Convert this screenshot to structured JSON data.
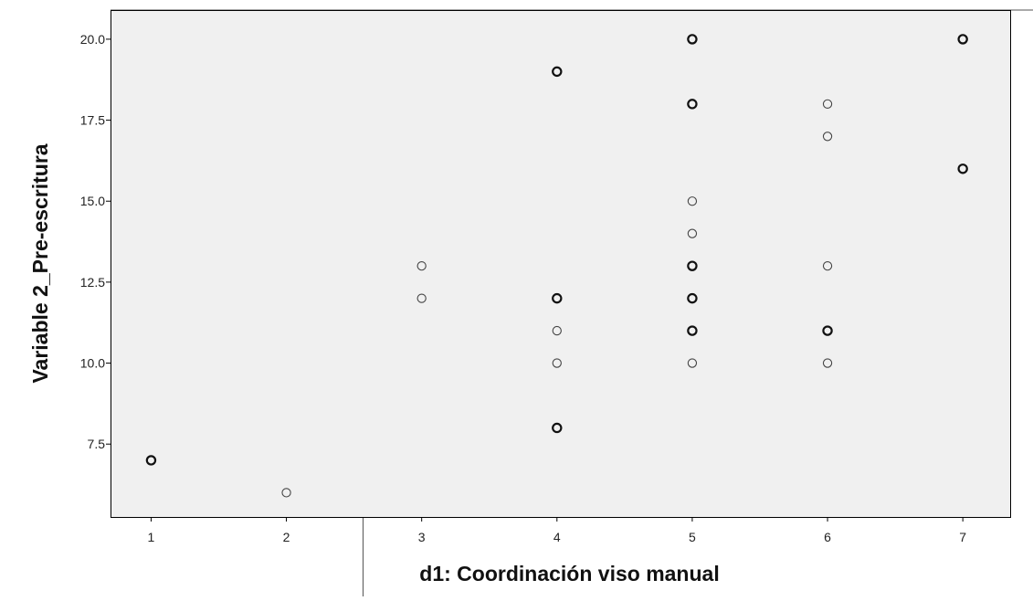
{
  "chart_data": {
    "type": "scatter",
    "xlabel": "d1: Coordinación viso manual",
    "ylabel": "Variable 2_Pre-escritura",
    "xlim": [
      0.7,
      7.35
    ],
    "ylim": [
      5.25,
      20.9
    ],
    "x_ticks": [
      1,
      2,
      3,
      4,
      5,
      6,
      7
    ],
    "y_ticks": [
      7.5,
      10.0,
      12.5,
      15.0,
      17.5,
      20.0
    ],
    "x_tick_labels": [
      "1",
      "2",
      "3",
      "4",
      "5",
      "6",
      "7"
    ],
    "y_tick_labels": [
      "7.5",
      "10.0",
      "12.5",
      "15.0",
      "17.5",
      "20.0"
    ],
    "grid": false,
    "legend": "none",
    "colors": {
      "plot_background": "#f0f0f0",
      "marker_stroke": "#333333",
      "axis": "#000000"
    },
    "points": [
      {
        "x": 1,
        "y": 7,
        "bold": true
      },
      {
        "x": 2,
        "y": 6,
        "bold": false
      },
      {
        "x": 3,
        "y": 13,
        "bold": false
      },
      {
        "x": 3,
        "y": 12,
        "bold": false
      },
      {
        "x": 4,
        "y": 19,
        "bold": true
      },
      {
        "x": 4,
        "y": 12,
        "bold": true
      },
      {
        "x": 4,
        "y": 11,
        "bold": false
      },
      {
        "x": 4,
        "y": 10,
        "bold": false
      },
      {
        "x": 4,
        "y": 8,
        "bold": true
      },
      {
        "x": 5,
        "y": 20,
        "bold": true
      },
      {
        "x": 5,
        "y": 18,
        "bold": true
      },
      {
        "x": 5,
        "y": 15,
        "bold": false
      },
      {
        "x": 5,
        "y": 14,
        "bold": false
      },
      {
        "x": 5,
        "y": 13,
        "bold": true
      },
      {
        "x": 5,
        "y": 12,
        "bold": true
      },
      {
        "x": 5,
        "y": 11,
        "bold": true
      },
      {
        "x": 5,
        "y": 10,
        "bold": false
      },
      {
        "x": 6,
        "y": 18,
        "bold": false
      },
      {
        "x": 6,
        "y": 17,
        "bold": false
      },
      {
        "x": 6,
        "y": 13,
        "bold": false
      },
      {
        "x": 6,
        "y": 11,
        "bold": true
      },
      {
        "x": 6,
        "y": 10,
        "bold": false
      },
      {
        "x": 7,
        "y": 20,
        "bold": true
      },
      {
        "x": 7,
        "y": 16,
        "bold": true
      }
    ]
  }
}
